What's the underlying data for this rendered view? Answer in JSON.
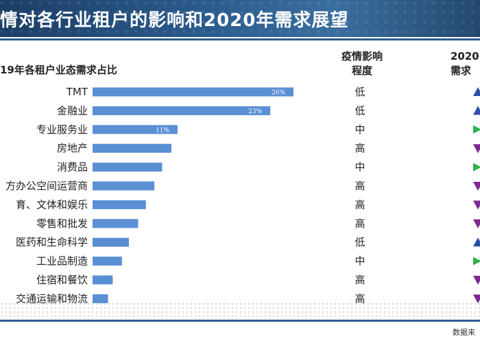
{
  "banner": {
    "title": "情对各行业租户的影响和2020年需求展望"
  },
  "headers": {
    "share_title": "19年各租户业态需求占比",
    "impact_line1": "疫情影响",
    "impact_line2": "程度",
    "outlook_line1": "2020",
    "outlook_line2": "需求"
  },
  "footer": {
    "source": "数据来"
  },
  "colors": {
    "bar": "#5b8fd4",
    "banner": "#2c5d8f",
    "up": "#2b4fa3",
    "flat": "#29b34a",
    "down": "#7b2a8f"
  },
  "chart_data": {
    "type": "bar",
    "orientation": "horizontal",
    "categories": [
      "TMT",
      "金融业",
      "专业服务业",
      "房地产",
      "消费品",
      "方办公空间运营商",
      "育、文体和娱乐",
      "零售和批发",
      "医药和生命科学",
      "工业品制造",
      "住宿和餐饮",
      "交通运输和物流"
    ],
    "values": [
      26,
      23,
      11,
      10.2,
      9,
      8,
      6.9,
      5.9,
      4.7,
      3.8,
      2.6,
      2.0
    ],
    "value_labels": [
      "26%",
      "23%",
      "11%",
      "",
      "",
      "",
      "",
      "",
      "",
      "",
      "",
      ""
    ],
    "impact": [
      "低",
      "低",
      "中",
      "高",
      "中",
      "高",
      "高",
      "高",
      "低",
      "中",
      "高",
      "高"
    ],
    "outlook": [
      "up",
      "up",
      "flat",
      "down",
      "flat",
      "down",
      "down",
      "down",
      "up",
      "flat",
      "down",
      "down"
    ],
    "xlim": [
      0,
      26
    ],
    "unit": "%"
  }
}
